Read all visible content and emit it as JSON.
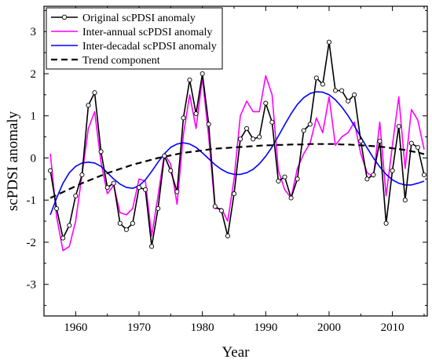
{
  "chart_data": {
    "type": "line",
    "xlabel": "Year",
    "ylabel": "scPDSI anomaly",
    "xlim": [
      1955,
      2015.5
    ],
    "ylim": [
      -3.75,
      3.6
    ],
    "x_ticks": [
      1960,
      1970,
      1980,
      1990,
      2000,
      2010
    ],
    "y_ticks": [
      -3,
      -2,
      -1,
      0,
      1,
      2,
      3
    ],
    "grid": false,
    "legend_position": "top-left",
    "x": [
      1956,
      1957,
      1958,
      1959,
      1960,
      1961,
      1962,
      1963,
      1964,
      1965,
      1966,
      1967,
      1968,
      1969,
      1970,
      1971,
      1972,
      1973,
      1974,
      1975,
      1976,
      1977,
      1978,
      1979,
      1980,
      1981,
      1982,
      1983,
      1984,
      1985,
      1986,
      1987,
      1988,
      1989,
      1990,
      1991,
      1992,
      1993,
      1994,
      1995,
      1996,
      1997,
      1998,
      1999,
      2000,
      2001,
      2002,
      2003,
      2004,
      2005,
      2006,
      2007,
      2008,
      2009,
      2010,
      2011,
      2012,
      2013,
      2014,
      2015
    ],
    "series": [
      {
        "name": "Original scPDSI anomaly",
        "color": "#000000",
        "marker": "open-circle",
        "values": [
          -0.3,
          -1.2,
          -1.9,
          -1.6,
          -0.9,
          -0.4,
          1.25,
          1.55,
          0.15,
          -0.7,
          -0.6,
          -1.55,
          -1.7,
          -1.55,
          -0.7,
          -0.75,
          -2.1,
          -1.2,
          0.05,
          -0.3,
          -0.8,
          0.95,
          1.85,
          1.05,
          2.0,
          0.8,
          -1.15,
          -1.25,
          -1.85,
          -0.85,
          0.45,
          0.7,
          0.45,
          0.5,
          1.3,
          0.85,
          -0.55,
          -0.45,
          -0.95,
          -0.5,
          0.65,
          0.8,
          1.9,
          1.75,
          2.75,
          1.6,
          1.6,
          1.35,
          1.5,
          0.4,
          -0.5,
          -0.4,
          0.4,
          -1.55,
          -0.3,
          0.75,
          -1.0,
          0.35,
          0.25,
          -0.4
        ]
      },
      {
        "name": "Inter-annual scPDSI anomaly",
        "color": "#ff00ff",
        "values": [
          0.1,
          -1.4,
          -2.2,
          -2.1,
          -1.5,
          -0.4,
          0.7,
          1.1,
          -0.1,
          -0.85,
          -0.65,
          -1.3,
          -1.35,
          -1.2,
          -0.5,
          -0.55,
          -1.85,
          -0.9,
          0.1,
          -0.15,
          -1.1,
          0.55,
          1.5,
          0.7,
          1.9,
          0.5,
          -1.2,
          -1.2,
          -1.5,
          -0.5,
          1.0,
          1.35,
          1.1,
          1.1,
          1.95,
          1.5,
          -0.3,
          -0.75,
          -0.95,
          -0.25,
          0.1,
          0.35,
          0.95,
          0.6,
          1.45,
          0.3,
          0.5,
          0.6,
          0.85,
          0.1,
          -0.35,
          -0.45,
          0.85,
          -0.9,
          0.3,
          1.45,
          -0.25,
          1.15,
          0.9,
          0.2
        ]
      },
      {
        "name": "Inter-decadal scPDSI anomaly",
        "color": "#0000ff",
        "values": [
          -1.35,
          -0.95,
          -0.6,
          -0.35,
          -0.2,
          -0.12,
          -0.1,
          -0.12,
          -0.2,
          -0.35,
          -0.5,
          -0.62,
          -0.7,
          -0.72,
          -0.66,
          -0.52,
          -0.32,
          -0.1,
          0.1,
          0.25,
          0.33,
          0.36,
          0.33,
          0.25,
          0.12,
          -0.02,
          -0.16,
          -0.27,
          -0.35,
          -0.39,
          -0.39,
          -0.35,
          -0.27,
          -0.14,
          0.04,
          0.26,
          0.52,
          0.79,
          1.05,
          1.27,
          1.43,
          1.53,
          1.57,
          1.56,
          1.5,
          1.38,
          1.21,
          1.0,
          0.76,
          0.5,
          0.24,
          0.0,
          -0.21,
          -0.39,
          -0.52,
          -0.6,
          -0.64,
          -0.64,
          -0.6,
          -0.55
        ]
      },
      {
        "name": "Trend component",
        "color": "#000000",
        "dash": "dashed",
        "values": [
          -0.95,
          -0.88,
          -0.81,
          -0.74,
          -0.67,
          -0.6,
          -0.54,
          -0.48,
          -0.42,
          -0.36,
          -0.31,
          -0.26,
          -0.21,
          -0.16,
          -0.12,
          -0.08,
          -0.04,
          0.0,
          0.03,
          0.06,
          0.09,
          0.12,
          0.14,
          0.16,
          0.18,
          0.2,
          0.22,
          0.23,
          0.24,
          0.25,
          0.26,
          0.27,
          0.28,
          0.29,
          0.3,
          0.3,
          0.31,
          0.31,
          0.32,
          0.32,
          0.32,
          0.33,
          0.33,
          0.33,
          0.33,
          0.33,
          0.32,
          0.32,
          0.31,
          0.3,
          0.29,
          0.28,
          0.27,
          0.25,
          0.23,
          0.21,
          0.19,
          0.16,
          0.13,
          0.09
        ]
      }
    ]
  }
}
